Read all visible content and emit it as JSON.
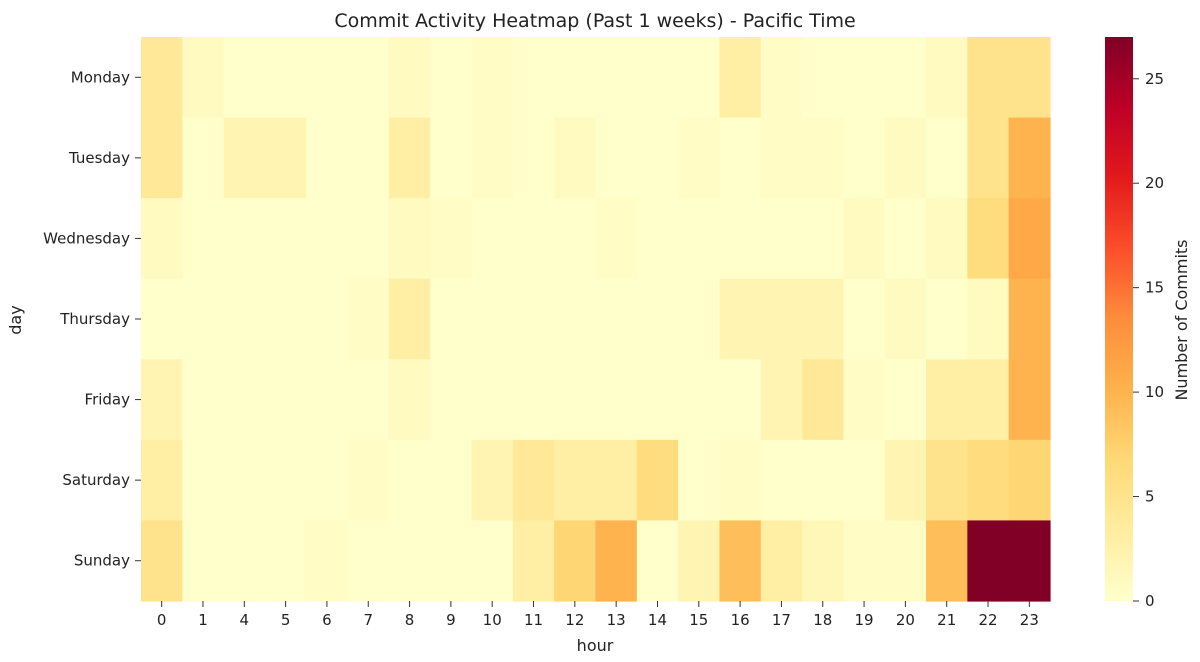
{
  "chart_data": {
    "type": "heatmap",
    "title": "Commit Activity Heatmap (Past 1 weeks) - Pacific Time",
    "xlabel": "hour",
    "ylabel": "day",
    "x_categories": [
      "0",
      "1",
      "4",
      "5",
      "6",
      "7",
      "8",
      "9",
      "10",
      "11",
      "12",
      "13",
      "14",
      "15",
      "16",
      "17",
      "18",
      "19",
      "20",
      "21",
      "22",
      "23"
    ],
    "y_categories": [
      "Monday",
      "Tuesday",
      "Wednesday",
      "Thursday",
      "Friday",
      "Saturday",
      "Sunday"
    ],
    "values": [
      [
        4,
        1,
        0,
        0,
        0,
        0,
        1,
        0,
        0.5,
        0,
        0,
        0,
        0,
        0,
        3,
        0.5,
        0,
        0,
        0,
        1,
        5,
        5
      ],
      [
        4,
        0,
        2,
        2,
        0,
        0,
        3,
        0,
        0.5,
        0,
        1,
        0,
        0,
        0.5,
        0,
        0.5,
        0.5,
        0,
        1,
        0,
        5,
        10
      ],
      [
        1,
        0,
        0,
        0,
        0,
        0,
        1,
        0.5,
        0,
        0,
        0,
        0.5,
        0,
        0,
        0,
        0,
        0,
        1,
        0,
        1,
        6,
        11
      ],
      [
        0,
        0,
        0,
        0,
        0,
        0.5,
        3,
        0,
        0,
        0,
        0,
        0,
        0,
        0,
        2,
        2,
        2,
        0,
        1,
        0,
        1,
        10
      ],
      [
        2,
        0,
        0,
        0,
        0,
        0,
        1,
        0,
        0,
        0,
        0,
        0,
        0,
        0,
        0,
        2,
        4,
        0.5,
        0,
        3,
        3,
        10
      ],
      [
        3,
        0,
        0,
        0,
        0,
        0.5,
        0,
        0,
        2,
        4,
        3,
        3,
        6,
        0,
        0.5,
        0,
        0,
        0,
        2,
        5,
        6,
        7
      ],
      [
        5,
        0,
        0,
        0,
        0.5,
        0,
        0,
        0,
        0,
        3,
        7,
        10,
        0,
        2,
        9,
        3,
        1.5,
        0.5,
        0.5,
        9,
        27,
        27
      ]
    ],
    "colorbar": {
      "label": "Number of Commits",
      "min": 0,
      "max": 27,
      "ticks": [
        0,
        5,
        10,
        15,
        20,
        25
      ],
      "colormap": "YlOrRd",
      "colors": [
        "#ffffcc",
        "#ffeda0",
        "#fed976",
        "#feb24c",
        "#fd8d3c",
        "#fc4e2a",
        "#e31a1c",
        "#bd0026",
        "#800026"
      ]
    },
    "grid": false
  }
}
